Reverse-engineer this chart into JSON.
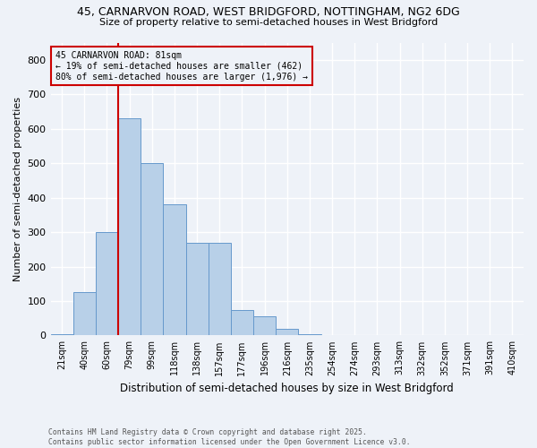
{
  "title_line1": "45, CARNARVON ROAD, WEST BRIDGFORD, NOTTINGHAM, NG2 6DG",
  "title_line2": "Size of property relative to semi-detached houses in West Bridgford",
  "xlabel": "Distribution of semi-detached houses by size in West Bridgford",
  "ylabel": "Number of semi-detached properties",
  "footnote": "Contains HM Land Registry data © Crown copyright and database right 2025.\nContains public sector information licensed under the Open Government Licence v3.0.",
  "bar_labels": [
    "21sqm",
    "40sqm",
    "60sqm",
    "79sqm",
    "99sqm",
    "118sqm",
    "138sqm",
    "157sqm",
    "177sqm",
    "196sqm",
    "216sqm",
    "235sqm",
    "254sqm",
    "274sqm",
    "293sqm",
    "313sqm",
    "332sqm",
    "352sqm",
    "371sqm",
    "391sqm",
    "410sqm"
  ],
  "bar_heights": [
    5,
    125,
    300,
    630,
    500,
    380,
    270,
    270,
    75,
    55,
    20,
    5,
    2,
    0,
    0,
    0,
    0,
    0,
    0,
    1,
    0
  ],
  "bar_color": "#b8d0e8",
  "bar_edge_color": "#6699cc",
  "vline_x_idx": 3,
  "vline_color": "#cc0000",
  "annotation_title": "45 CARNARVON ROAD: 81sqm",
  "annotation_line1": "← 19% of semi-detached houses are smaller (462)",
  "annotation_line2": "80% of semi-detached houses are larger (1,976) →",
  "annotation_box_color": "#cc0000",
  "ylim": [
    0,
    850
  ],
  "yticks": [
    0,
    100,
    200,
    300,
    400,
    500,
    600,
    700,
    800
  ],
  "background_color": "#eef2f8",
  "grid_color": "#d8e0ec"
}
